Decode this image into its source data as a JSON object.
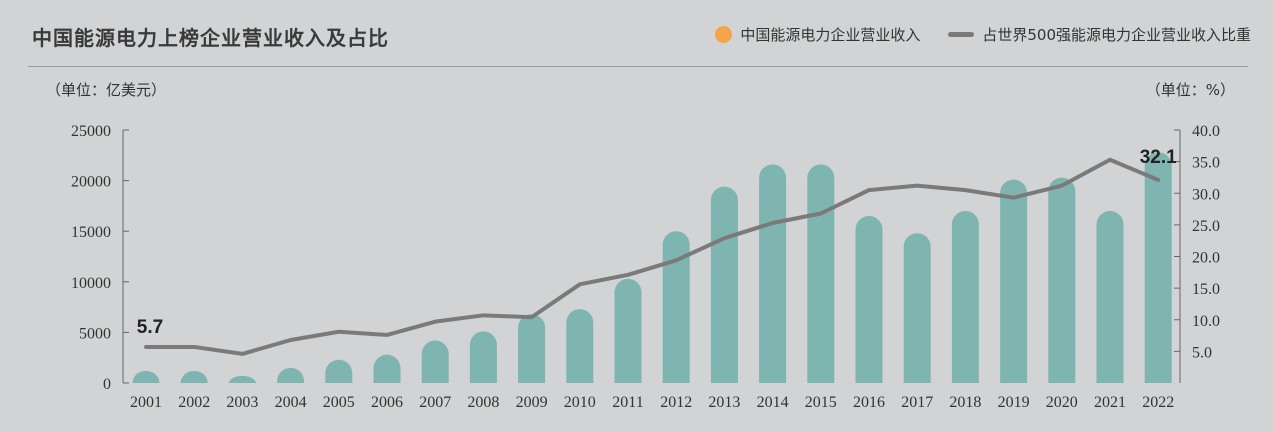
{
  "header": {
    "title": "中国能源电力上榜企业营业收入及占比",
    "legend_bar": "中国能源电力企业营业收入",
    "legend_line": "占世界500强能源电力企业营业收入比重",
    "unit_left": "（单位：亿美元）",
    "unit_right": "（单位：%）"
  },
  "colors": {
    "bar": "#7fb5b0",
    "line": "#7a7a7a",
    "legend_dot": "#f5a447",
    "background": "#d1d3d4"
  },
  "chart_data": {
    "type": "bar",
    "title": "中国能源电力上榜企业营业收入及占比",
    "categories": [
      "2001",
      "2002",
      "2003",
      "2004",
      "2005",
      "2006",
      "2007",
      "2008",
      "2009",
      "2010",
      "2011",
      "2012",
      "2013",
      "2014",
      "2015",
      "2016",
      "2017",
      "2018",
      "2019",
      "2020",
      "2021",
      "2022"
    ],
    "series": [
      {
        "name": "中国能源电力企业营业收入",
        "type": "bar",
        "axis": "left",
        "values": [
          1200,
          1200,
          700,
          1500,
          2300,
          2800,
          4200,
          5100,
          6800,
          7300,
          10300,
          15000,
          19400,
          21600,
          21600,
          16500,
          14800,
          17000,
          20100,
          20300,
          17000,
          22800
        ]
      },
      {
        "name": "占世界500强能源电力企业营业收入比重",
        "type": "line",
        "axis": "right",
        "values": [
          5.7,
          5.7,
          4.6,
          6.8,
          8.1,
          7.6,
          9.7,
          10.7,
          10.4,
          15.6,
          17.1,
          19.4,
          22.9,
          25.3,
          26.8,
          30.5,
          31.2,
          30.5,
          29.3,
          31.2,
          35.3,
          32.1
        ]
      }
    ],
    "y_left": {
      "min": 0,
      "max": 25000,
      "ticks": [
        "0",
        "5000",
        "10000",
        "15000",
        "20000",
        "25000"
      ]
    },
    "y_right": {
      "min": 0,
      "max": 40,
      "ticks": [
        "5.0",
        "10.0",
        "15.0",
        "20.0",
        "25.0",
        "30.0",
        "35.0",
        "40.0"
      ]
    },
    "annotations": [
      {
        "text": "5.7",
        "series": 1,
        "index": 0
      },
      {
        "text": "32.1",
        "series": 1,
        "index": 21
      }
    ],
    "grid": false,
    "legend": "top-right"
  }
}
